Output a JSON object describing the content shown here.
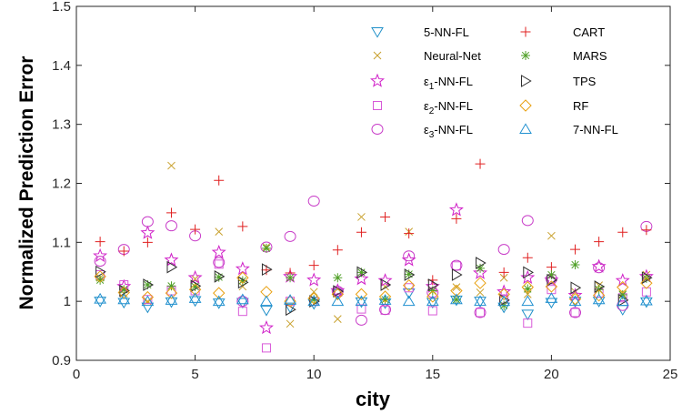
{
  "chart_data": {
    "type": "scatter",
    "xlabel": "city",
    "ylabel": "Normalized Prediction Error",
    "xlim": [
      0,
      25
    ],
    "ylim": [
      0.9,
      1.5
    ],
    "xticks": [
      0,
      5,
      10,
      15,
      20,
      25
    ],
    "yticks": [
      0.9,
      1,
      1.1,
      1.2,
      1.3,
      1.4,
      1.5
    ],
    "grid": false,
    "legend_position": "top-right",
    "series": [
      {
        "name": "5-NN-FL",
        "marker": "triangle-down",
        "color": "#1f8fc8",
        "x": [
          1,
          2,
          3,
          4,
          5,
          6,
          7,
          8,
          9,
          10,
          11,
          12,
          13,
          14,
          15,
          16,
          17,
          18,
          19,
          20,
          21,
          22,
          23,
          24
        ],
        "y": [
          1.0,
          0.998,
          0.99,
          0.999,
          1.001,
          0.997,
          0.998,
          0.985,
          0.99,
          0.996,
          1.013,
          0.999,
          0.997,
          1.014,
          0.998,
          1.002,
          1.0,
          0.99,
          0.978,
          0.998,
          1.0,
          1.0,
          0.986,
          0.999
        ]
      },
      {
        "name": "Neural-Net",
        "marker": "x",
        "color": "#c8a02c",
        "x": [
          1,
          2,
          3,
          4,
          5,
          6,
          7,
          8,
          9,
          10,
          11,
          12,
          13,
          14,
          15,
          16,
          17,
          18,
          19,
          20,
          21,
          22,
          23,
          24
        ],
        "y": [
          1.04,
          1.013,
          1.0,
          1.23,
          1.038,
          1.118,
          1.025,
          1.092,
          0.962,
          1.016,
          0.97,
          1.143,
          1.025,
          1.118,
          1.018,
          1.024,
          1.015,
          1.04,
          1.012,
          1.111,
          1.016,
          1.027,
          1.012,
          1.045
        ]
      },
      {
        "name": "ε1-NN-FL",
        "marker": "star",
        "color": "#d020c8",
        "x": [
          1,
          2,
          3,
          4,
          5,
          6,
          7,
          8,
          9,
          10,
          11,
          12,
          13,
          14,
          15,
          16,
          17,
          18,
          19,
          20,
          21,
          22,
          23,
          24
        ],
        "y": [
          1.077,
          1.025,
          1.116,
          1.07,
          1.04,
          1.083,
          1.055,
          0.955,
          1.042,
          1.036,
          1.018,
          1.038,
          1.035,
          1.07,
          1.025,
          1.155,
          1.048,
          1.016,
          1.04,
          1.036,
          1.01,
          1.059,
          1.035,
          1.042
        ]
      },
      {
        "name": "ε2-NN-FL",
        "marker": "square",
        "color": "#d85ad8",
        "x": [
          1,
          2,
          3,
          4,
          5,
          6,
          7,
          8,
          9,
          10,
          11,
          12,
          13,
          14,
          15,
          16,
          17,
          18,
          19,
          20,
          21,
          22,
          23,
          24
        ],
        "y": [
          1.045,
          1.028,
          1.003,
          1.018,
          1.018,
          1.063,
          0.983,
          0.921,
          1.0,
          1.0,
          1.016,
          0.987,
          0.985,
          1.023,
          0.984,
          1.06,
          0.981,
          1.004,
          0.963,
          1.02,
          0.981,
          1.014,
          1.006,
          1.016
        ]
      },
      {
        "name": "ε3-NN-FL",
        "marker": "circle",
        "color": "#c83cc8",
        "x": [
          1,
          2,
          3,
          4,
          5,
          6,
          7,
          8,
          9,
          10,
          11,
          12,
          13,
          14,
          15,
          16,
          17,
          18,
          19,
          20,
          21,
          22,
          23,
          24
        ],
        "y": [
          1.068,
          1.088,
          1.135,
          1.128,
          1.111,
          1.066,
          1.0,
          1.092,
          1.11,
          1.17,
          1.017,
          0.968,
          0.986,
          1.077,
          1.015,
          1.061,
          0.981,
          1.088,
          1.137,
          1.038,
          0.981,
          1.057,
          0.993,
          1.127
        ]
      },
      {
        "name": "CART",
        "marker": "plus",
        "color": "#e02020",
        "x": [
          1,
          2,
          3,
          4,
          5,
          6,
          7,
          8,
          9,
          10,
          11,
          12,
          13,
          14,
          15,
          16,
          17,
          18,
          19,
          20,
          21,
          22,
          23,
          24
        ],
        "y": [
          1.101,
          1.085,
          1.1,
          1.15,
          1.122,
          1.205,
          1.127,
          1.053,
          1.048,
          1.061,
          1.087,
          1.117,
          1.143,
          1.115,
          1.036,
          1.14,
          1.233,
          1.049,
          1.074,
          1.058,
          1.088,
          1.101,
          1.117,
          1.121
        ]
      },
      {
        "name": "MARS",
        "marker": "asterisk",
        "color": "#50a028",
        "x": [
          1,
          2,
          3,
          4,
          5,
          6,
          7,
          8,
          9,
          10,
          11,
          12,
          13,
          14,
          15,
          16,
          17,
          18,
          19,
          20,
          21,
          22,
          23,
          24
        ],
        "y": [
          1.036,
          1.02,
          1.028,
          1.026,
          1.025,
          1.041,
          1.035,
          1.09,
          1.04,
          1.003,
          1.04,
          1.049,
          1.003,
          1.046,
          1.018,
          1.003,
          1.056,
          0.993,
          1.021,
          1.045,
          1.062,
          1.02,
          1.011,
          1.039
        ]
      },
      {
        "name": "TPS",
        "marker": "triangle-right",
        "color": "#303030",
        "x": [
          1,
          2,
          3,
          4,
          5,
          6,
          7,
          8,
          9,
          10,
          11,
          12,
          13,
          14,
          15,
          16,
          17,
          18,
          19,
          20,
          21,
          22,
          23,
          24
        ],
        "y": [
          1.05,
          1.018,
          1.028,
          1.058,
          1.026,
          1.042,
          1.032,
          1.054,
          0.986,
          1.0,
          1.017,
          1.049,
          1.028,
          1.045,
          1.028,
          1.045,
          1.065,
          1.002,
          1.049,
          1.036,
          1.023,
          1.025,
          1.002,
          1.04
        ]
      },
      {
        "name": "RF",
        "marker": "diamond",
        "color": "#e8a010",
        "x": [
          1,
          2,
          3,
          4,
          5,
          6,
          7,
          8,
          9,
          10,
          11,
          12,
          13,
          14,
          15,
          16,
          17,
          18,
          19,
          20,
          21,
          22,
          23,
          24
        ],
        "y": [
          1.042,
          1.015,
          1.007,
          1.014,
          1.02,
          1.014,
          1.04,
          1.016,
          1.0,
          1.005,
          1.012,
          1.012,
          1.008,
          1.027,
          1.008,
          1.018,
          1.031,
          1.012,
          1.024,
          1.025,
          1.004,
          1.01,
          1.024,
          1.031
        ]
      },
      {
        "name": "7-NN-FL",
        "marker": "triangle-up",
        "color": "#2090d0",
        "x": [
          1,
          2,
          3,
          4,
          5,
          6,
          7,
          8,
          9,
          10,
          11,
          12,
          13,
          14,
          15,
          16,
          17,
          18,
          19,
          20,
          21,
          22,
          23,
          24
        ],
        "y": [
          1.004,
          1.003,
          1.0,
          1.002,
          1.005,
          1.0,
          1.003,
          1.0,
          1.002,
          1.0,
          1.0,
          1.0,
          1.002,
          1.0,
          1.0,
          1.003,
          1.0,
          1.0,
          1.0,
          1.005,
          1.0,
          1.003,
          1.0,
          1.001
        ]
      }
    ],
    "legend_labels": [
      {
        "base": "5-NN-FL"
      },
      {
        "base": "Neural-Net"
      },
      {
        "base": "ε",
        "sub": "1",
        "rest": "-NN-FL"
      },
      {
        "base": "ε",
        "sub": "2",
        "rest": "-NN-FL"
      },
      {
        "base": "ε",
        "sub": "3",
        "rest": "-NN-FL"
      },
      {
        "base": "CART"
      },
      {
        "base": "MARS"
      },
      {
        "base": "TPS"
      },
      {
        "base": "RF"
      },
      {
        "base": "7-NN-FL"
      }
    ]
  }
}
